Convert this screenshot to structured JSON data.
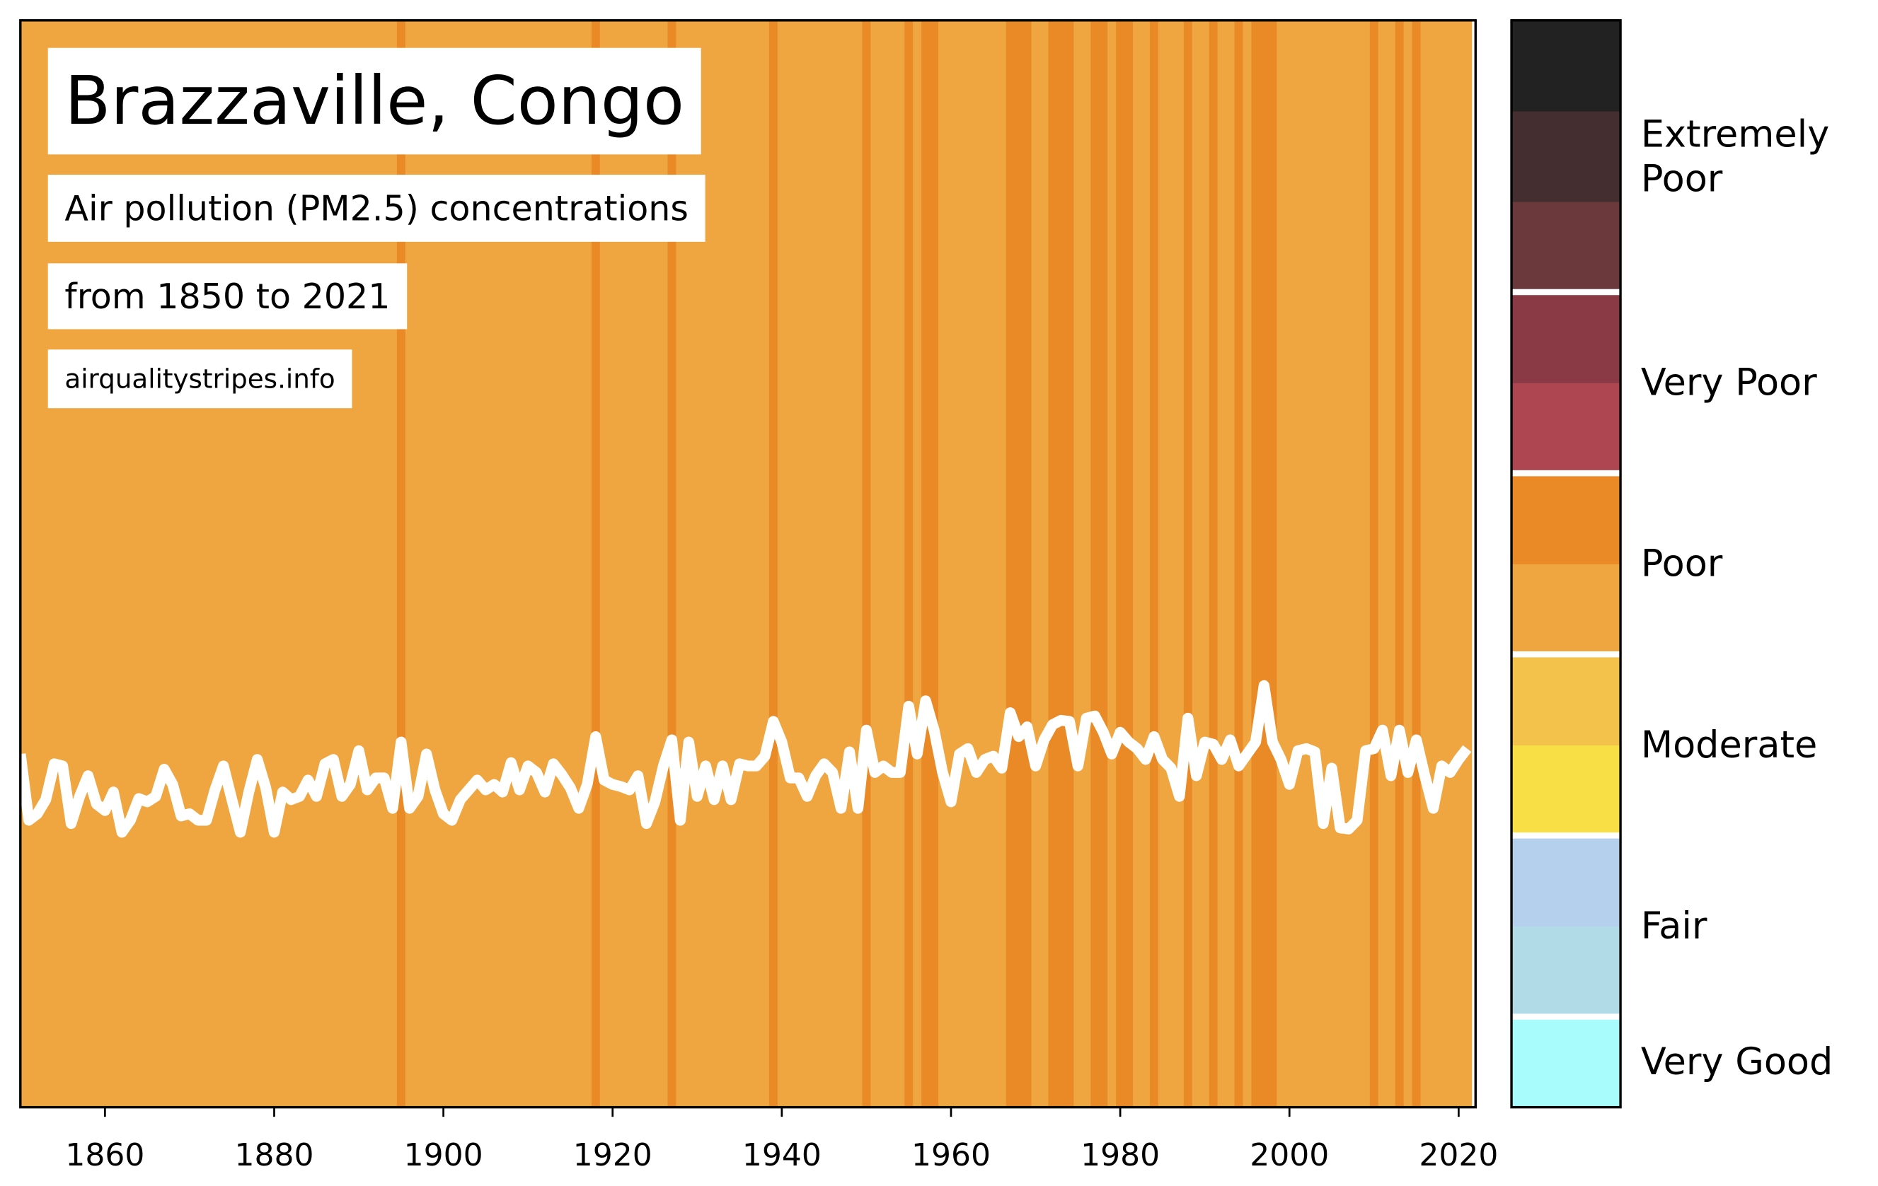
{
  "chart_data": {
    "type": "line",
    "title": "Brazzaville, Congo",
    "subtitle": "Air pollution (PM2.5) concentrations",
    "period": "from 1850 to 2021",
    "source": "airqualitystripes.info",
    "xlim": [
      1850,
      2022
    ],
    "xticks": [
      1860,
      1880,
      1900,
      1920,
      1940,
      1960,
      1980,
      2000,
      2020
    ],
    "ylim": [
      0,
      100
    ],
    "line_color": "#ffffff",
    "x": [
      1850,
      1851,
      1852,
      1853,
      1854,
      1855,
      1856,
      1857,
      1858,
      1859,
      1860,
      1861,
      1862,
      1863,
      1864,
      1865,
      1866,
      1867,
      1868,
      1869,
      1870,
      1871,
      1872,
      1873,
      1874,
      1875,
      1876,
      1877,
      1878,
      1879,
      1880,
      1881,
      1882,
      1883,
      1884,
      1885,
      1886,
      1887,
      1888,
      1889,
      1890,
      1891,
      1892,
      1893,
      1894,
      1895,
      1896,
      1897,
      1898,
      1899,
      1900,
      1901,
      1902,
      1903,
      1904,
      1905,
      1906,
      1907,
      1908,
      1909,
      1910,
      1911,
      1912,
      1913,
      1914,
      1915,
      1916,
      1917,
      1918,
      1919,
      1920,
      1921,
      1922,
      1923,
      1924,
      1925,
      1926,
      1927,
      1928,
      1929,
      1930,
      1931,
      1932,
      1933,
      1934,
      1935,
      1936,
      1937,
      1938,
      1939,
      1940,
      1941,
      1942,
      1943,
      1944,
      1945,
      1946,
      1947,
      1948,
      1949,
      1950,
      1951,
      1952,
      1953,
      1954,
      1955,
      1956,
      1957,
      1958,
      1959,
      1960,
      1961,
      1962,
      1963,
      1964,
      1965,
      1966,
      1967,
      1968,
      1969,
      1970,
      1971,
      1972,
      1973,
      1974,
      1975,
      1976,
      1977,
      1978,
      1979,
      1980,
      1981,
      1982,
      1983,
      1984,
      1985,
      1986,
      1987,
      1988,
      1989,
      1990,
      1991,
      1992,
      1993,
      1994,
      1995,
      1996,
      1997,
      1998,
      1999,
      2000,
      2001,
      2002,
      2003,
      2004,
      2005,
      2006,
      2007,
      2008,
      2009,
      2010,
      2011,
      2012,
      2013,
      2014,
      2015,
      2016,
      2017,
      2018,
      2019,
      2020,
      2021
    ],
    "values": [
      32.5,
      26.4,
      27.0,
      28.3,
      31.6,
      31.4,
      26.1,
      28.6,
      30.5,
      27.9,
      27.3,
      29.0,
      25.3,
      26.4,
      28.4,
      28.1,
      28.6,
      31.1,
      29.7,
      26.8,
      27.0,
      26.4,
      26.4,
      29.2,
      31.4,
      28.3,
      25.3,
      29.0,
      32.0,
      29.4,
      25.3,
      29.0,
      28.3,
      28.6,
      30.1,
      28.6,
      31.6,
      32.0,
      28.6,
      29.7,
      32.8,
      29.2,
      30.3,
      30.3,
      27.5,
      33.6,
      27.5,
      28.6,
      32.5,
      29.2,
      27.0,
      26.4,
      28.3,
      29.2,
      30.1,
      29.2,
      29.7,
      29.0,
      31.7,
      29.2,
      31.4,
      30.8,
      29.0,
      31.6,
      30.6,
      29.4,
      27.5,
      29.7,
      34.1,
      30.1,
      29.7,
      29.5,
      29.2,
      30.5,
      26.1,
      28.1,
      31.4,
      33.8,
      26.4,
      33.6,
      28.6,
      31.4,
      28.3,
      31.4,
      28.3,
      31.6,
      31.4,
      31.4,
      32.3,
      35.5,
      33.6,
      30.3,
      30.3,
      28.6,
      30.5,
      31.6,
      30.8,
      27.5,
      32.7,
      27.5,
      34.7,
      30.8,
      31.4,
      30.8,
      30.8,
      36.9,
      32.5,
      37.4,
      34.7,
      30.8,
      28.1,
      32.5,
      33.0,
      30.8,
      32.0,
      32.3,
      31.2,
      36.3,
      34.1,
      35.0,
      31.4,
      33.8,
      35.2,
      35.6,
      35.5,
      31.4,
      35.8,
      36.0,
      34.5,
      32.5,
      34.5,
      33.6,
      33.0,
      32.0,
      34.1,
      32.0,
      31.2,
      28.6,
      35.8,
      30.5,
      33.6,
      33.4,
      32.0,
      33.8,
      31.4,
      32.5,
      33.6,
      38.8,
      33.6,
      32.0,
      29.7,
      32.8,
      33.0,
      32.7,
      26.1,
      31.2,
      25.7,
      25.6,
      26.4,
      32.8,
      33.0,
      34.7,
      30.5,
      34.7,
      30.8,
      33.8,
      30.5,
      27.5,
      31.4,
      30.8,
      32.0,
      33.0
    ],
    "stripe_colors": [
      "#f0a640",
      "#f0a640",
      "#f0a640",
      "#f0a640",
      "#f0a640",
      "#f0a640",
      "#f0a640",
      "#f0a640",
      "#f0a640",
      "#f0a640",
      "#f0a640",
      "#f0a640",
      "#f0a640",
      "#f0a640",
      "#f0a640",
      "#f0a640",
      "#f0a640",
      "#f0a640",
      "#f0a640",
      "#f0a640",
      "#f0a640",
      "#f0a640",
      "#f0a640",
      "#f0a640",
      "#f0a640",
      "#f0a640",
      "#f0a640",
      "#f0a640",
      "#f0a640",
      "#f0a640",
      "#f0a640",
      "#f0a640",
      "#f0a640",
      "#f0a640",
      "#f0a640",
      "#f0a640",
      "#f0a640",
      "#f0a640",
      "#f0a640",
      "#f0a640",
      "#f0a640",
      "#f0a640",
      "#f0a640",
      "#f0a640",
      "#f0a640",
      "#e98a27",
      "#f0a640",
      "#f0a640",
      "#f0a640",
      "#f0a640",
      "#f0a640",
      "#f0a640",
      "#f0a640",
      "#f0a640",
      "#f0a640",
      "#f0a640",
      "#f0a640",
      "#f0a640",
      "#f0a640",
      "#f0a640",
      "#f0a640",
      "#f0a640",
      "#f0a640",
      "#f0a640",
      "#f0a640",
      "#f0a640",
      "#f0a640",
      "#f0a640",
      "#e98a27",
      "#f0a640",
      "#f0a640",
      "#f0a640",
      "#f0a640",
      "#f0a640",
      "#f0a640",
      "#f0a640",
      "#f0a640",
      "#e98a27",
      "#f0a640",
      "#f0a640",
      "#f0a640",
      "#f0a640",
      "#f0a640",
      "#f0a640",
      "#f0a640",
      "#f0a640",
      "#f0a640",
      "#f0a640",
      "#f0a640",
      "#e98a27",
      "#f0a640",
      "#f0a640",
      "#f0a640",
      "#f0a640",
      "#f0a640",
      "#f0a640",
      "#f0a640",
      "#f0a640",
      "#f0a640",
      "#f0a640",
      "#e98a27",
      "#f0a640",
      "#f0a640",
      "#f0a640",
      "#f0a640",
      "#e98a27",
      "#f0a640",
      "#e98a27",
      "#e98a27",
      "#f0a640",
      "#f0a640",
      "#f0a640",
      "#f0a640",
      "#f0a640",
      "#f0a640",
      "#f0a640",
      "#f0a640",
      "#e98a27",
      "#e98a27",
      "#e98a27",
      "#f0a640",
      "#f0a640",
      "#e98a27",
      "#e98a27",
      "#e98a27",
      "#f0a640",
      "#f0a640",
      "#e98a27",
      "#e98a27",
      "#f0a640",
      "#e98a27",
      "#e98a27",
      "#f0a640",
      "#f0a640",
      "#e98a27",
      "#f0a640",
      "#f0a640",
      "#f0a640",
      "#e98a27",
      "#f0a640",
      "#f0a640",
      "#e98a27",
      "#f0a640",
      "#f0a640",
      "#e98a27",
      "#f0a640",
      "#e98a27",
      "#e98a27",
      "#e98a27",
      "#f0a640",
      "#f0a640",
      "#f0a640",
      "#f0a640",
      "#f0a640",
      "#f0a640",
      "#f0a640",
      "#f0a640",
      "#f0a640",
      "#f0a640",
      "#f0a640",
      "#e98a27",
      "#f0a640",
      "#f0a640",
      "#e98a27",
      "#f0a640",
      "#e98a27",
      "#f0a640",
      "#f0a640",
      "#f0a640",
      "#f0a640",
      "#f0a640",
      "#f0a640"
    ],
    "colorbar": [
      {
        "name": "Very Good",
        "colors": [
          "#a9fcfc"
        ]
      },
      {
        "name": "Fair",
        "colors": [
          "#b2dbe8",
          "#b4d0ed"
        ]
      },
      {
        "name": "Moderate",
        "colors": [
          "#f7df45",
          "#f2c24a"
        ]
      },
      {
        "name": "Poor",
        "colors": [
          "#f0a640",
          "#e98a27"
        ]
      },
      {
        "name": "Very Poor",
        "colors": [
          "#ae4651",
          "#8a3a45"
        ]
      },
      {
        "name": "Extremely\nPoor",
        "colors": [
          "#6b383c",
          "#452e30",
          "#222222"
        ]
      }
    ]
  }
}
